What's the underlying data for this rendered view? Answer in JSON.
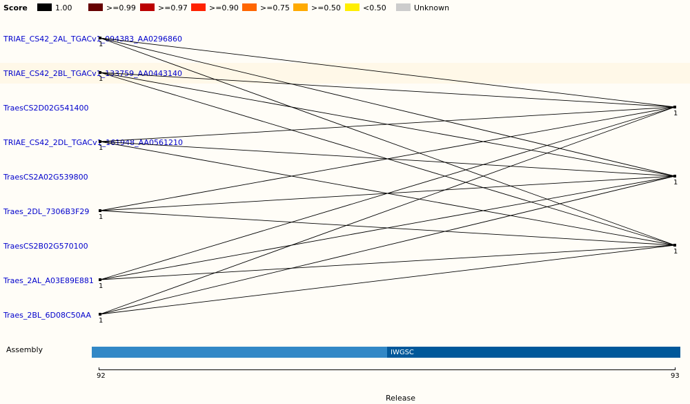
{
  "legend": {
    "title": "Score",
    "items": [
      {
        "label": "1.00",
        "color": "#000000"
      },
      {
        "label": ">=0.99",
        "color": "#660000"
      },
      {
        "label": ">=0.97",
        "color": "#bb0000"
      },
      {
        "label": ">=0.90",
        "color": "#ff2200"
      },
      {
        "label": ">=0.75",
        "color": "#ff6600"
      },
      {
        "label": ">=0.50",
        "color": "#ffaa00"
      },
      {
        "label": "<0.50",
        "color": "#ffee00"
      },
      {
        "label": "Unknown",
        "color": "#cccccc"
      }
    ]
  },
  "genes": [
    "TRIAE_CS42_2AL_TGACv1_094383_AA0296860",
    "TRIAE_CS42_2BL_TGACv1_133759_AA0443140",
    "TraesCS2D02G541400",
    "TRIAE_CS42_2DL_TGACv1_161948_AA0561210",
    "TraesCS2A02G539800",
    "Traes_2DL_7306B3F29",
    "TraesCS2B02G570100",
    "Traes_2AL_A03E89E881",
    "Traes_2BL_6D08C50AA"
  ],
  "left_node_label": "1",
  "right_node_label": "1",
  "assembly": {
    "label": "Assembly",
    "segments": [
      {
        "label": "",
        "color": "#3288c6"
      },
      {
        "label": "IWGSC",
        "color": "#00589a"
      }
    ]
  },
  "axis": {
    "ticks": [
      "92",
      "93"
    ],
    "xlabel": "Release"
  }
}
